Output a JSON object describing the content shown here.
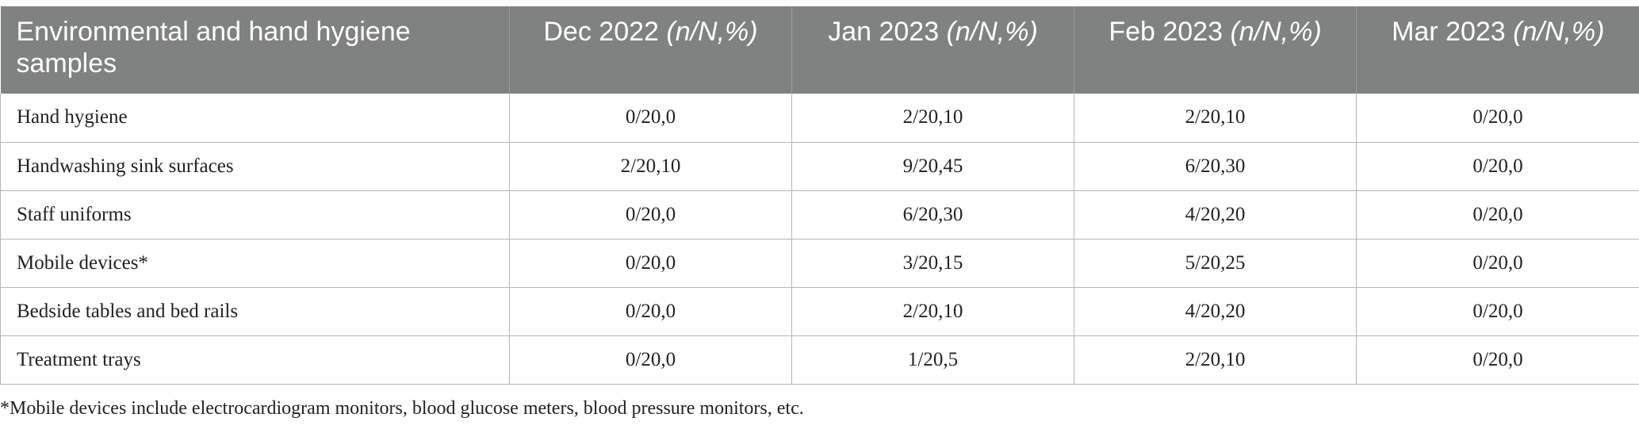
{
  "table": {
    "header": {
      "col0": "Environmental and hand hygiene samples",
      "months": [
        {
          "label": "Dec 2022",
          "unit": "(n/N,%)"
        },
        {
          "label": "Jan 2023",
          "unit": "(n/N,%)"
        },
        {
          "label": "Feb 2023",
          "unit": "(n/N,%)"
        },
        {
          "label": "Mar 2023",
          "unit": "(n/N,%)"
        }
      ]
    },
    "rows": [
      {
        "label": "Hand hygiene",
        "values": [
          "0/20,0",
          "2/20,10",
          "2/20,10",
          "0/20,0"
        ]
      },
      {
        "label": "Handwashing sink surfaces",
        "values": [
          "2/20,10",
          "9/20,45",
          "6/20,30",
          "0/20,0"
        ]
      },
      {
        "label": "Staff uniforms",
        "values": [
          "0/20,0",
          "6/20,30",
          "4/20,20",
          "0/20,0"
        ]
      },
      {
        "label": "Mobile devices*",
        "values": [
          "0/20,0",
          "3/20,15",
          "5/20,25",
          "0/20,0"
        ]
      },
      {
        "label": "Bedside tables and bed rails",
        "values": [
          "0/20,0",
          "2/20,10",
          "4/20,20",
          "0/20,0"
        ]
      },
      {
        "label": "Treatment trays",
        "values": [
          "0/20,0",
          "1/20,5",
          "2/20,10",
          "0/20,0"
        ]
      }
    ]
  },
  "footnote": "*Mobile devices include electrocardiogram monitors, blood glucose meters, blood pressure monitors, etc."
}
